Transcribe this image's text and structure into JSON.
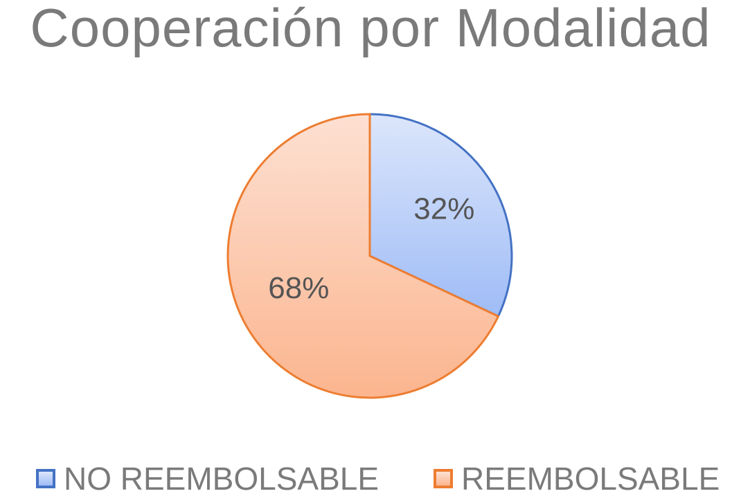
{
  "chart_data": {
    "type": "pie",
    "title": "Cooperación por Modalidad",
    "categories": [
      "NO REEMBOLSABLE",
      "REEMBOLSABLE"
    ],
    "values": [
      32,
      68
    ],
    "data_labels": [
      "32%",
      "68%"
    ],
    "colors": {
      "NO REEMBOLSABLE": {
        "fill_light": "#dce6fb",
        "fill_dark": "#9fbcf6",
        "stroke": "#4472c4"
      },
      "REEMBOLSABLE": {
        "fill_light": "#fde0d2",
        "fill_dark": "#fbb58f",
        "stroke": "#ed7d31"
      }
    },
    "legend_position": "bottom",
    "start_angle_deg": 0,
    "direction": "clockwise"
  },
  "legend": {
    "items": [
      {
        "label": "NO REEMBOLSABLE"
      },
      {
        "label": "REEMBOLSABLE"
      }
    ]
  }
}
